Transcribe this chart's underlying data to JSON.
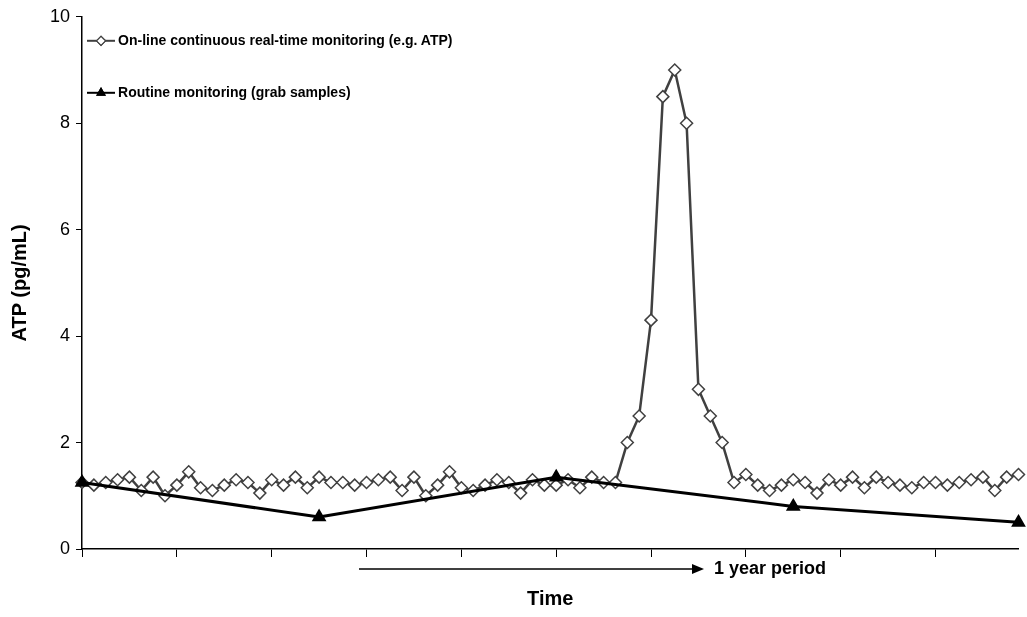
{
  "chart_data": {
    "type": "line",
    "xlabel": "Time",
    "ylabel": "ATP (pg/mL)",
    "annotations": [
      "1 year period"
    ],
    "categories": [
      null,
      null,
      null,
      null,
      null,
      null,
      null,
      null,
      null,
      null,
      null,
      null,
      null,
      null,
      null,
      null,
      null,
      null,
      null,
      null,
      null,
      null,
      null,
      null,
      null,
      null,
      null,
      null,
      null,
      null,
      null,
      null,
      null,
      null,
      null,
      null,
      null,
      null,
      null,
      null,
      null,
      null,
      null,
      null,
      null,
      null,
      null,
      null,
      null,
      null,
      null,
      null,
      null,
      null,
      null,
      null,
      null,
      null,
      null,
      null,
      null,
      null,
      null,
      null,
      null,
      null,
      null,
      null,
      null,
      null,
      null,
      null,
      null,
      null,
      null,
      null,
      null,
      null,
      null,
      null
    ],
    "ylim": [
      0,
      10
    ],
    "yticks": [
      0,
      2,
      4,
      6,
      8,
      10
    ],
    "grid": false,
    "legend": "top left",
    "tick_labels": "y",
    "series": [
      {
        "name": "On-line continuous real-time monitoring (e.g. ATP)",
        "color": "#404040",
        "marker": "diamond",
        "values": [
          1.25,
          1.2,
          1.25,
          1.3,
          1.35,
          1.1,
          1.35,
          1.0,
          1.2,
          1.45,
          1.15,
          1.1,
          1.2,
          1.3,
          1.25,
          1.05,
          1.3,
          1.2,
          1.35,
          1.15,
          1.35,
          1.25,
          1.25,
          1.2,
          1.25,
          1.3,
          1.35,
          1.1,
          1.35,
          1.0,
          1.2,
          1.45,
          1.15,
          1.1,
          1.2,
          1.3,
          1.25,
          1.05,
          1.3,
          1.2,
          1.2,
          1.3,
          1.15,
          1.35,
          1.25,
          1.25,
          2.0,
          2.5,
          4.3,
          8.5,
          9.0,
          8.0,
          3.0,
          2.5,
          2.0,
          1.25,
          1.4,
          1.2,
          1.1,
          1.2,
          1.3,
          1.25,
          1.05,
          1.3,
          1.2,
          1.35,
          1.15,
          1.35,
          1.25,
          1.2,
          1.15,
          1.25,
          1.25,
          1.2,
          1.25,
          1.3,
          1.35,
          1.1,
          1.35,
          1.4
        ]
      },
      {
        "name": "Routine monitoring (grab samples)",
        "color": "#000000",
        "marker": "triangle",
        "values": [
          1.25,
          null,
          null,
          null,
          null,
          null,
          null,
          null,
          null,
          null,
          null,
          null,
          null,
          null,
          null,
          null,
          null,
          null,
          null,
          null,
          0.6,
          null,
          null,
          null,
          null,
          null,
          null,
          null,
          null,
          null,
          null,
          null,
          null,
          null,
          null,
          null,
          null,
          null,
          null,
          null,
          1.35,
          null,
          null,
          null,
          null,
          null,
          null,
          null,
          null,
          null,
          null,
          null,
          null,
          null,
          null,
          null,
          null,
          null,
          null,
          null,
          0.8,
          null,
          null,
          null,
          null,
          null,
          null,
          null,
          null,
          null,
          null,
          null,
          null,
          null,
          null,
          null,
          null,
          null,
          null,
          0.5
        ]
      }
    ]
  }
}
